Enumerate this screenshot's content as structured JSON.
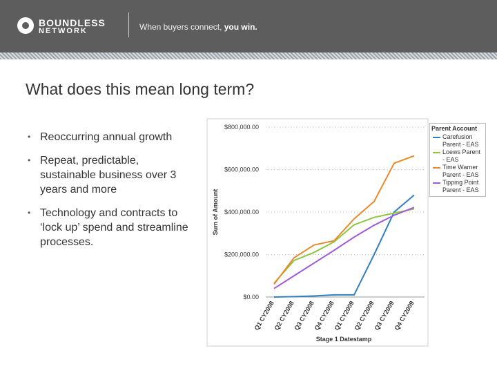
{
  "header": {
    "logo_top": "BOUNDLESS",
    "logo_bottom": "NETWORK",
    "tagline": "When buyers connect,",
    "tagline_bold": "you win."
  },
  "title": "What does this mean long term?",
  "bullets": [
    "Reoccurring annual growth",
    "Repeat, predictable, sustainable business over 3 years and more",
    "Technology and contracts to ‘lock up’ spend and streamline processes."
  ],
  "chart_data": {
    "type": "line",
    "x_label": "Stage 1 Datestamp",
    "y_label": "Sum of Amount",
    "legend_title": "Parent Account",
    "categories": [
      "Q1 CY2008",
      "Q2 CY2008",
      "Q3 CY2008",
      "Q4 CY2008",
      "Q1 CY2009",
      "Q2 CY2009",
      "Q3 CY2009",
      "Q4 CY2009"
    ],
    "series": [
      {
        "name": "Carefusion Parent - EAS",
        "color": "#2f7fc1",
        "values": [
          0,
          2000,
          5000,
          10000,
          10000,
          200000,
          400000,
          480000
        ]
      },
      {
        "name": "Loews Parent - EAS",
        "color": "#8cc63f",
        "values": [
          65000,
          172000,
          210000,
          260000,
          340000,
          375000,
          395000,
          415000
        ]
      },
      {
        "name": "Time Warner Parent - EAS",
        "color": "#e8892c",
        "values": [
          60000,
          185000,
          245000,
          265000,
          368000,
          450000,
          630000,
          665000
        ]
      },
      {
        "name": "Tipping Point Parent - EAS",
        "color": "#a05ad8",
        "values": [
          40000,
          100000,
          160000,
          220000,
          282000,
          338000,
          385000,
          422000
        ]
      }
    ],
    "ylim": [
      0,
      800000
    ],
    "yticks": [
      {
        "value": 0,
        "label": "$0.00"
      },
      {
        "value": 200000,
        "label": "$200,000.00"
      },
      {
        "value": 400000,
        "label": "$400,000.00"
      },
      {
        "value": 600000,
        "label": "$600,000.00"
      },
      {
        "value": 800000,
        "label": "$800,000.00"
      }
    ],
    "grid": true
  }
}
